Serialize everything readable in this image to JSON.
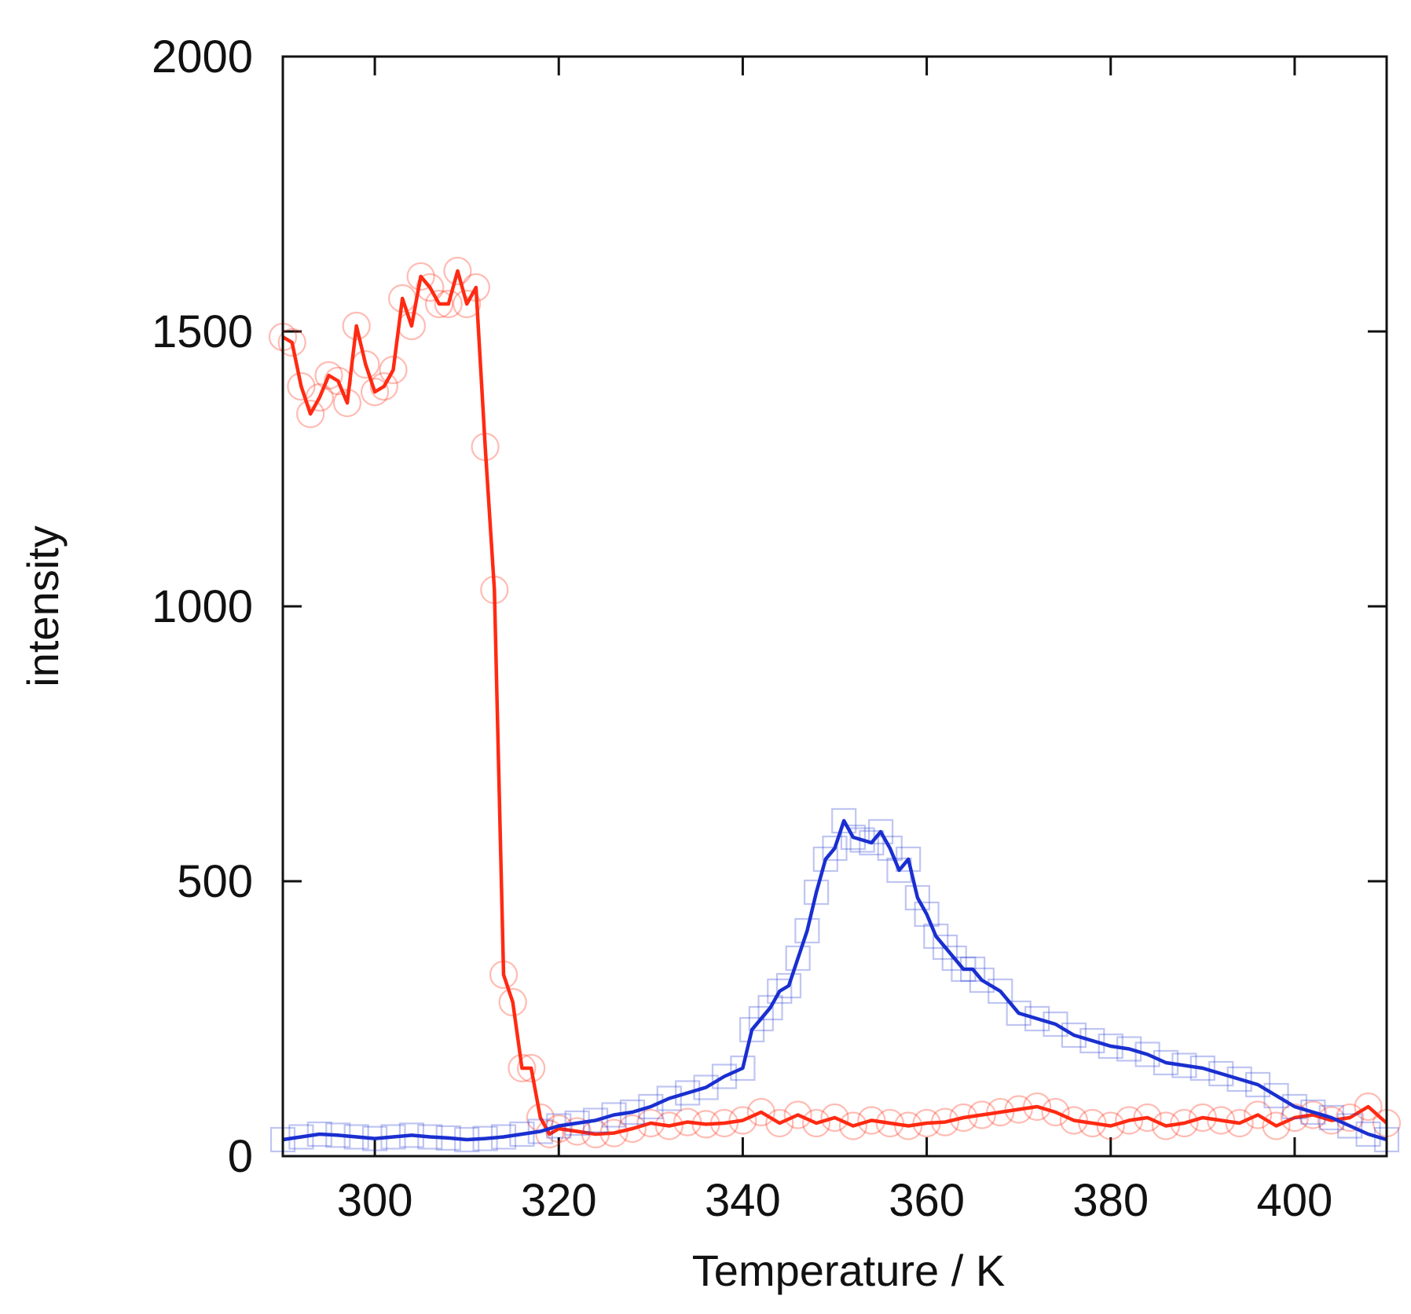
{
  "chart_data": {
    "type": "line",
    "title": "",
    "xlabel": "Temperature / K",
    "ylabel": "intensity",
    "xlim": [
      290,
      410
    ],
    "ylim": [
      0,
      2000
    ],
    "xticks": [
      300,
      320,
      340,
      360,
      380,
      400
    ],
    "yticks": [
      0,
      500,
      1000,
      1500,
      2000
    ],
    "grid": false,
    "legend": "none",
    "series": [
      {
        "color": "#ff2a12",
        "marker": "circle",
        "x": [
          290,
          291,
          292,
          293,
          294,
          295,
          296,
          297,
          298,
          299,
          300,
          301,
          302,
          303,
          304,
          305,
          306,
          307,
          308,
          309,
          310,
          311,
          312,
          313,
          314,
          315,
          316,
          317,
          318,
          319,
          320,
          322,
          324,
          326,
          328,
          330,
          332,
          334,
          336,
          338,
          340,
          342,
          344,
          346,
          348,
          350,
          352,
          354,
          356,
          358,
          360,
          362,
          364,
          366,
          368,
          370,
          372,
          374,
          376,
          378,
          380,
          382,
          384,
          386,
          388,
          390,
          392,
          394,
          396,
          398,
          400,
          402,
          404,
          406,
          408,
          410
        ],
        "y": [
          1490,
          1480,
          1400,
          1350,
          1380,
          1420,
          1410,
          1370,
          1510,
          1440,
          1390,
          1400,
          1430,
          1560,
          1510,
          1600,
          1580,
          1550,
          1550,
          1610,
          1550,
          1580,
          1290,
          1030,
          330,
          280,
          160,
          160,
          70,
          40,
          50,
          45,
          40,
          42,
          50,
          60,
          55,
          62,
          58,
          60,
          65,
          80,
          60,
          75,
          60,
          70,
          55,
          65,
          60,
          55,
          60,
          62,
          70,
          75,
          80,
          85,
          90,
          80,
          65,
          60,
          55,
          65,
          70,
          55,
          60,
          70,
          65,
          60,
          75,
          55,
          70,
          75,
          65,
          70,
          90,
          60
        ]
      },
      {
        "color": "#1a2fd0",
        "marker": "square",
        "x": [
          290,
          292,
          294,
          296,
          298,
          300,
          302,
          304,
          306,
          308,
          310,
          312,
          314,
          316,
          318,
          320,
          322,
          324,
          326,
          328,
          330,
          332,
          334,
          336,
          338,
          340,
          341,
          342,
          343,
          344,
          345,
          346,
          347,
          348,
          349,
          350,
          351,
          352,
          353,
          354,
          355,
          356,
          357,
          358,
          359,
          360,
          361,
          362,
          363,
          364,
          365,
          366,
          368,
          370,
          372,
          374,
          376,
          378,
          380,
          382,
          384,
          386,
          388,
          390,
          392,
          394,
          396,
          398,
          400,
          402,
          404,
          406,
          408,
          410
        ],
        "y": [
          30,
          35,
          40,
          38,
          35,
          32,
          35,
          38,
          35,
          33,
          30,
          32,
          35,
          40,
          45,
          55,
          60,
          65,
          75,
          80,
          90,
          105,
          115,
          125,
          145,
          160,
          230,
          250,
          270,
          300,
          310,
          360,
          410,
          480,
          540,
          560,
          610,
          580,
          575,
          570,
          590,
          560,
          520,
          540,
          470,
          440,
          400,
          380,
          360,
          340,
          340,
          320,
          300,
          260,
          250,
          240,
          220,
          210,
          200,
          195,
          185,
          170,
          165,
          160,
          150,
          140,
          130,
          110,
          90,
          80,
          70,
          55,
          40,
          30
        ]
      }
    ]
  }
}
